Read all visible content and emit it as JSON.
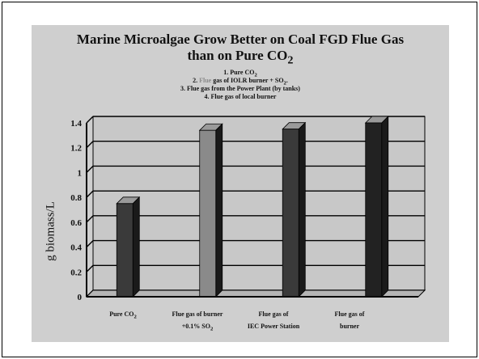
{
  "chart_data": {
    "type": "bar",
    "title_line1": "Marine Microalgae Grow Better on Coal FGD Flue Gas",
    "title_line2_prefix": "than on Pure CO",
    "title_line2_sub": "2",
    "legend_notes": [
      {
        "number": "1.",
        "prefix": "Pure CO",
        "sub": "2",
        "suffix": ""
      },
      {
        "number": "2.",
        "flue": "Flue",
        "prefix": " gas of IOLR burner + SO",
        "sub": "2",
        "suffix": "."
      },
      {
        "number": "3.",
        "prefix": "Flue gas from the Power Plant (by tanks)"
      },
      {
        "number": "4.",
        "prefix": "Flue gas of local burner"
      }
    ],
    "ylabel": "g biomass/L",
    "ylim": [
      0,
      1.4
    ],
    "yticks": [
      "0",
      "0.2",
      "0.4",
      "0.6",
      "0.8",
      "1",
      "1.2",
      "1.4"
    ],
    "categories": [
      {
        "line1": "Pure CO",
        "line1_sub": "2",
        "line2": ""
      },
      {
        "line1": "Flue gas of burner",
        "line2": "+0.1% SO",
        "line2_sub": "2"
      },
      {
        "line1": "Flue gas of",
        "line2": "IEC Power Station"
      },
      {
        "line1": "Flue gas of",
        "line2": "burner"
      }
    ],
    "values": [
      0.75,
      1.34,
      1.35,
      1.4
    ],
    "bar_colors": [
      "#3a3a3a",
      "#8a8a8a",
      "#3a3a3a",
      "#222222"
    ],
    "grid": true
  }
}
